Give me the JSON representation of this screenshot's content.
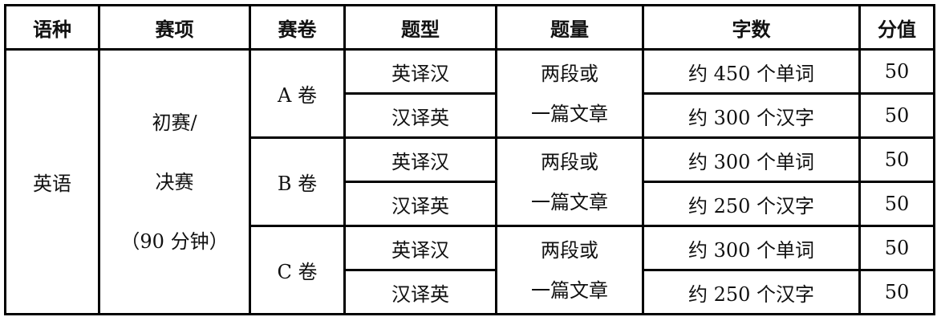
{
  "headers": [
    "语种",
    "赛项",
    "赛卷",
    "题型",
    "题量",
    "字数",
    "分值"
  ],
  "language": "英语",
  "event": [
    "初赛/",
    "决赛",
    "（90 分钟）"
  ],
  "papers": [
    {
      "name": "A 卷",
      "volume": [
        "两段或",
        "一篇文章"
      ],
      "rows": [
        {
          "type": "英译汉",
          "words": "约 450 个单词",
          "score": "50"
        },
        {
          "type": "汉译英",
          "words": "约 300  个汉字",
          "score": "50"
        }
      ]
    },
    {
      "name": "B 卷",
      "volume": [
        "两段或",
        "一篇文章"
      ],
      "rows": [
        {
          "type": "英译汉",
          "words": "约 300 个单词",
          "score": "50"
        },
        {
          "type": "汉译英",
          "words": "约 250 个汉字",
          "score": "50"
        }
      ]
    },
    {
      "name": "C 卷",
      "volume": [
        "两段或",
        "一篇文章"
      ],
      "rows": [
        {
          "type": "英译汉",
          "words": "约 300 个单词",
          "score": "50"
        },
        {
          "type": "汉译英",
          "words": "约 250 个汉字",
          "score": "50"
        }
      ]
    }
  ]
}
